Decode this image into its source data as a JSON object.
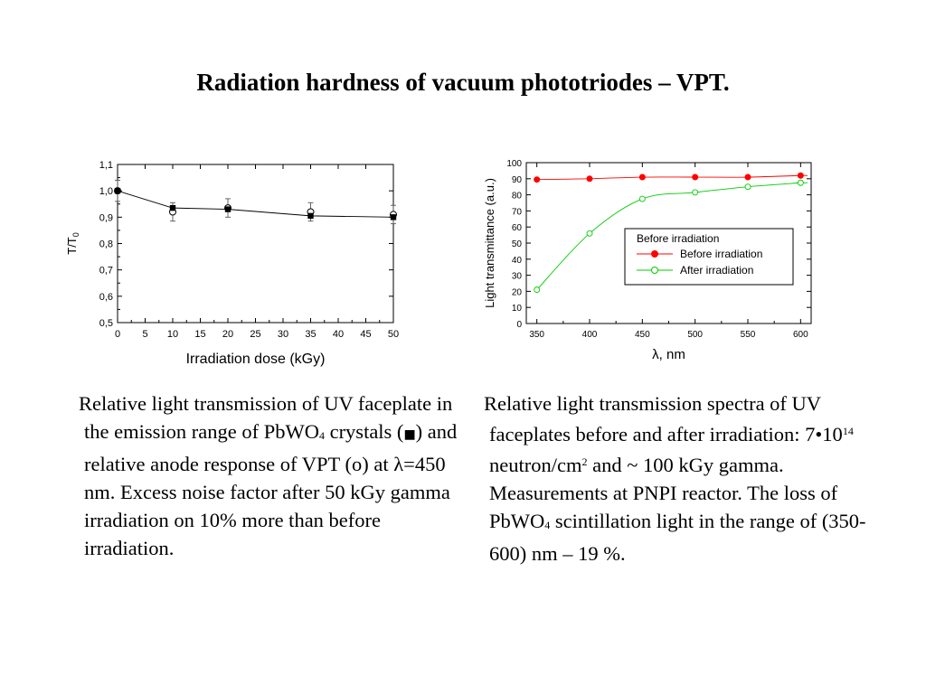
{
  "slide": {
    "title": "Radiation hardness of vacuum phototriodes – VPT."
  },
  "captions": {
    "left": {
      "t1": "Relative light transmission of UV faceplate in the emission range of PbWO",
      "sub1": "4",
      "t2": " crystals (",
      "square_mark": "■",
      "t3": ") and relative anode response of VPT (o) at ",
      "lambda": "λ",
      "t4": "=450 nm. Excess noise factor after 50 kGy gamma irradiation on 10% more than before irradiation."
    },
    "right": {
      "t1": "Relative light transmission spectra of UV faceplates before and after irradiation: 7•10",
      "sup1": "14",
      "t2": " neutron/cm",
      "sup2": "2",
      "t3": " and ~ 100 kGy gamma. Measurements at PNPI reactor. The loss of PbWO",
      "sub1": "4",
      "t4": " scintillation light in the range of (350-600) nm – 19 %."
    }
  },
  "chart_data": [
    {
      "type": "scatter",
      "title": "",
      "xlabel": "Irradiation dose (kGy)",
      "ylabel": "T/T",
      "ylabel_sub": "0",
      "xlim": [
        0,
        50
      ],
      "ylim": [
        0.5,
        1.1
      ],
      "x_ticks": [
        0,
        5,
        10,
        15,
        20,
        25,
        30,
        35,
        40,
        45,
        50
      ],
      "x_tick_labels": [
        "0",
        "5",
        "10",
        "15",
        "20",
        "25",
        "30",
        "35",
        "40",
        "45",
        "50"
      ],
      "y_ticks": [
        0.5,
        0.6,
        0.7,
        0.8,
        0.9,
        1.0,
        1.1
      ],
      "y_tick_labels": [
        "0,5",
        "0,6",
        "0,7",
        "0,8",
        "0,9",
        "1,0",
        "1,1"
      ],
      "series": [
        {
          "marker": "filled-square",
          "color": "#000000",
          "connected": true,
          "x": [
            0,
            10,
            20,
            35,
            50
          ],
          "y": [
            1.0,
            0.935,
            0.93,
            0.905,
            0.9
          ],
          "err": [
            0.0,
            0.0,
            0.0,
            0.0,
            0.0
          ]
        },
        {
          "marker": "open-circle",
          "color": "#000000",
          "connected": false,
          "x": [
            0,
            10,
            20,
            35,
            50
          ],
          "y": [
            1.0,
            0.92,
            0.935,
            0.92,
            0.91
          ],
          "err": [
            0.04,
            0.035,
            0.035,
            0.035,
            0.035
          ]
        }
      ]
    },
    {
      "type": "line",
      "title": "",
      "xlabel": "λ, nm",
      "ylabel": "Light transmittance (a.u.)",
      "xlim": [
        340,
        610
      ],
      "ylim": [
        0,
        100
      ],
      "x_ticks": [
        350,
        400,
        450,
        500,
        550,
        600
      ],
      "x_tick_labels": [
        "350",
        "400",
        "450",
        "500",
        "550",
        "600"
      ],
      "y_ticks": [
        0,
        10,
        20,
        30,
        40,
        50,
        60,
        70,
        80,
        90,
        100
      ],
      "y_tick_labels": [
        "0",
        "10",
        "20",
        "30",
        "40",
        "50",
        "60",
        "70",
        "80",
        "90",
        "100"
      ],
      "legend": {
        "title": "Before irradiation",
        "placement": "center-right"
      },
      "series": [
        {
          "name": "Before irradiation",
          "color": "#ff0000",
          "marker": "filled-circle",
          "x": [
            350,
            400,
            450,
            500,
            550,
            600
          ],
          "y": [
            89.5,
            90,
            91,
            91,
            91,
            92
          ]
        },
        {
          "name": "After irradiation",
          "color": "#00cc00",
          "marker": "open-circle",
          "x": [
            350,
            400,
            450,
            500,
            550,
            600
          ],
          "y": [
            21,
            56,
            77.5,
            81.5,
            85,
            87.5
          ]
        }
      ]
    }
  ]
}
